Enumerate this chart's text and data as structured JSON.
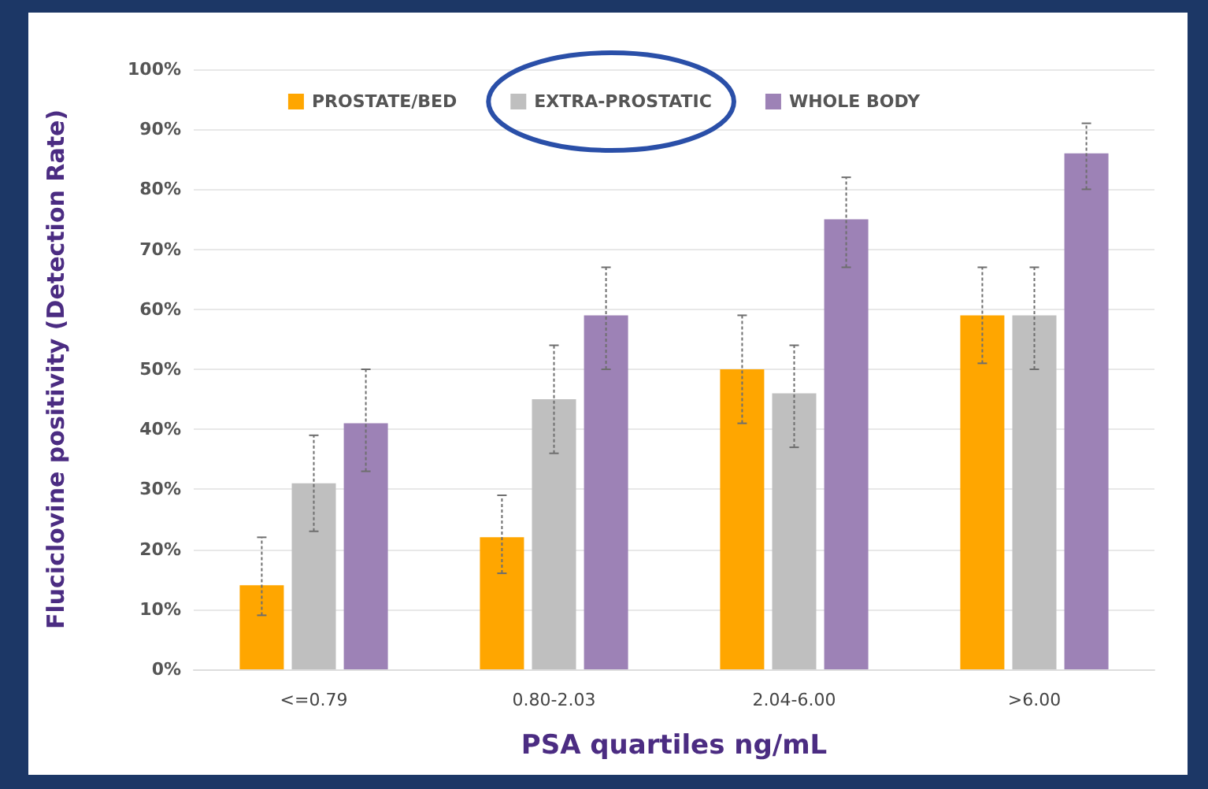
{
  "chart_data": {
    "type": "bar",
    "xlabel": "PSA quartiles ng/mL",
    "ylabel": "Fluciclovine positivity (Detection Rate)",
    "categories": [
      "<=0.79",
      "0.80-2.03",
      "2.04-6.00",
      ">6.00"
    ],
    "series": [
      {
        "name": "PROSTATE/BED",
        "color": "#ffa600",
        "values": [
          14,
          22,
          50,
          59
        ],
        "errors": [
          [
            9,
            22
          ],
          [
            16,
            29
          ],
          [
            41,
            59
          ],
          [
            51,
            67
          ]
        ]
      },
      {
        "name": "EXTRA-PROSTATIC",
        "color": "#bfbfbf",
        "values": [
          31,
          45,
          46,
          59
        ],
        "errors": [
          [
            23,
            39
          ],
          [
            36,
            54
          ],
          [
            37,
            54
          ],
          [
            50,
            67
          ]
        ]
      },
      {
        "name": "WHOLE BODY",
        "color": "#9d82b6",
        "values": [
          41,
          59,
          75,
          86
        ],
        "errors": [
          [
            33,
            50
          ],
          [
            50,
            67
          ],
          [
            67,
            82
          ],
          [
            80,
            91
          ]
        ]
      }
    ],
    "ylim": [
      0,
      100
    ],
    "yticks": [
      {
        "value": 0,
        "label": "0%"
      },
      {
        "value": 10,
        "label": "10%"
      },
      {
        "value": 20,
        "label": "20%"
      },
      {
        "value": 30,
        "label": "30%"
      },
      {
        "value": 40,
        "label": "40%"
      },
      {
        "value": 50,
        "label": "50%"
      },
      {
        "value": 60,
        "label": "60%"
      },
      {
        "value": 70,
        "label": "70%"
      },
      {
        "value": 80,
        "label": "80%"
      },
      {
        "value": 90,
        "label": "90%"
      },
      {
        "value": 100,
        "label": "100%"
      }
    ],
    "grid": "y",
    "legend": "top"
  }
}
